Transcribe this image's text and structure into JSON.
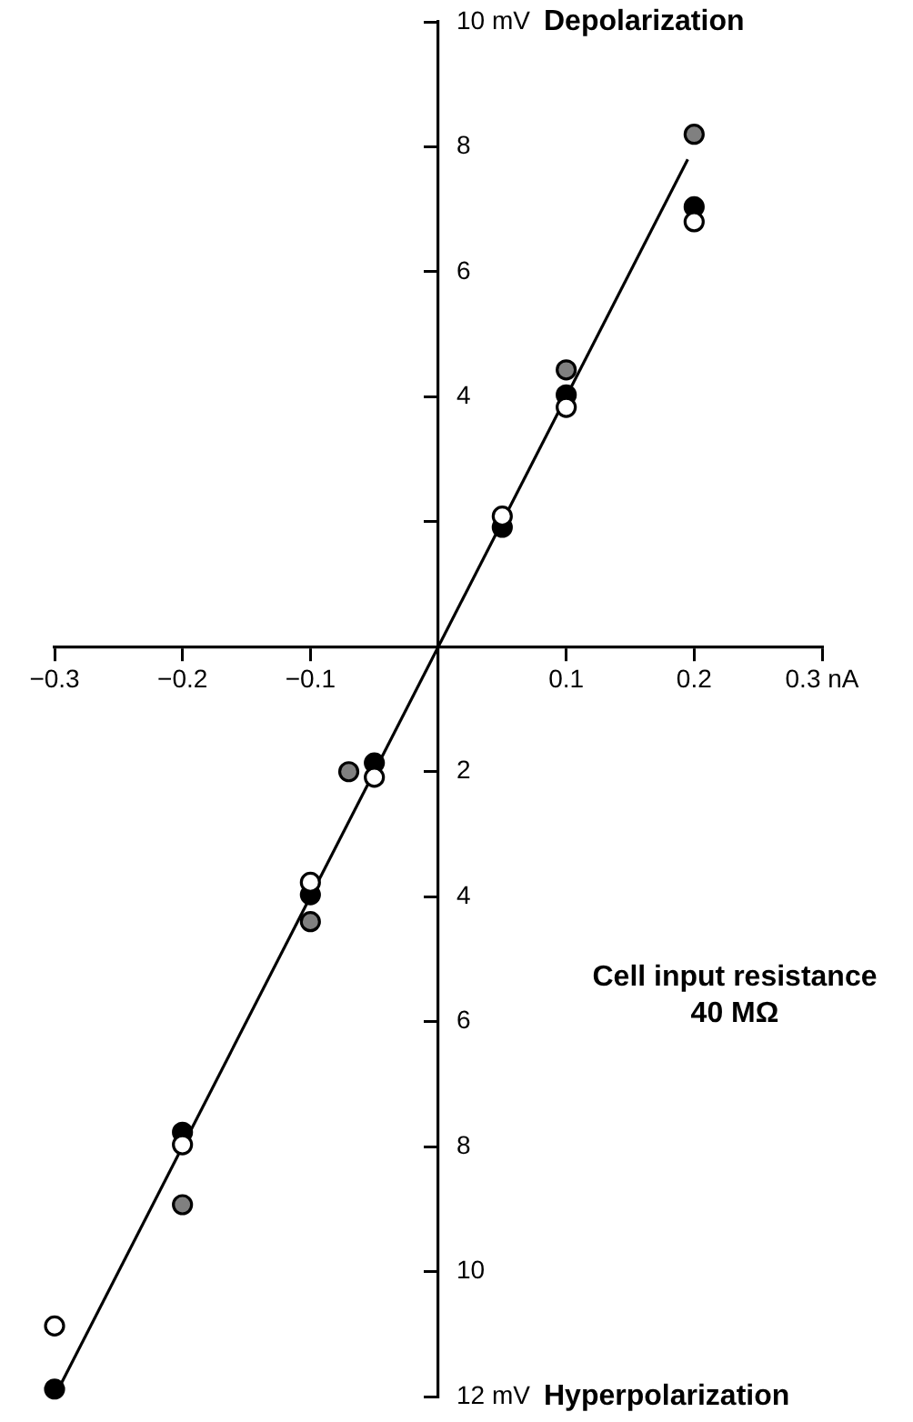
{
  "chart_data": {
    "type": "scatter",
    "annotations": [
      "Depolarization",
      "Hyperpolarization",
      "Cell input resistance\n40 MΩ"
    ],
    "xlim": [
      -0.3,
      0.3
    ],
    "ylim": [
      -12,
      10
    ],
    "xticks": [
      {
        "value": -0.3,
        "label": "−0.3"
      },
      {
        "value": -0.2,
        "label": "−0.2"
      },
      {
        "value": -0.1,
        "label": "−0.1"
      },
      0.1,
      0.2,
      {
        "value": 0.3,
        "label": "0.3 nA"
      }
    ],
    "yticks": [
      {
        "value": 10,
        "label": "10 mV"
      },
      8,
      6,
      4,
      {
        "value": 2,
        "label": null
      },
      {
        "value": -2,
        "label": "2"
      },
      {
        "value": -4,
        "label": "4"
      },
      {
        "value": -6,
        "label": "6"
      },
      {
        "value": -8,
        "label": "8"
      },
      {
        "value": -10,
        "label": "10"
      },
      {
        "value": -12,
        "label": "12 mV"
      }
    ],
    "grid": false,
    "legend": false,
    "marker": "circle",
    "series": [
      {
        "color": "#ffffff",
        "x": [
          0.2,
          0.1,
          0.05,
          -0.05,
          -0.1,
          -0.2,
          -0.3
        ],
        "values": [
          6.8,
          3.83,
          2.09,
          -2.09,
          -3.77,
          -7.97,
          -10.87
        ]
      },
      {
        "color": "#000000",
        "x": [
          0.2,
          0.1,
          0.05,
          -0.05,
          -0.1,
          -0.2,
          -0.3
        ],
        "values": [
          7.04,
          4.03,
          1.91,
          -1.86,
          -3.97,
          -7.77,
          -11.88
        ]
      },
      {
        "color": "#808080",
        "x": [
          0.2,
          0.1,
          -0.07,
          -0.1,
          -0.2
        ],
        "values": [
          8.2,
          4.43,
          -2.0,
          -4.4,
          -8.93
        ]
      },
      {
        "type": "line",
        "color": "#000000",
        "marker": "none",
        "x": [
          -0.3,
          0.195
        ],
        "values": [
          -12,
          7.8
        ]
      }
    ]
  }
}
